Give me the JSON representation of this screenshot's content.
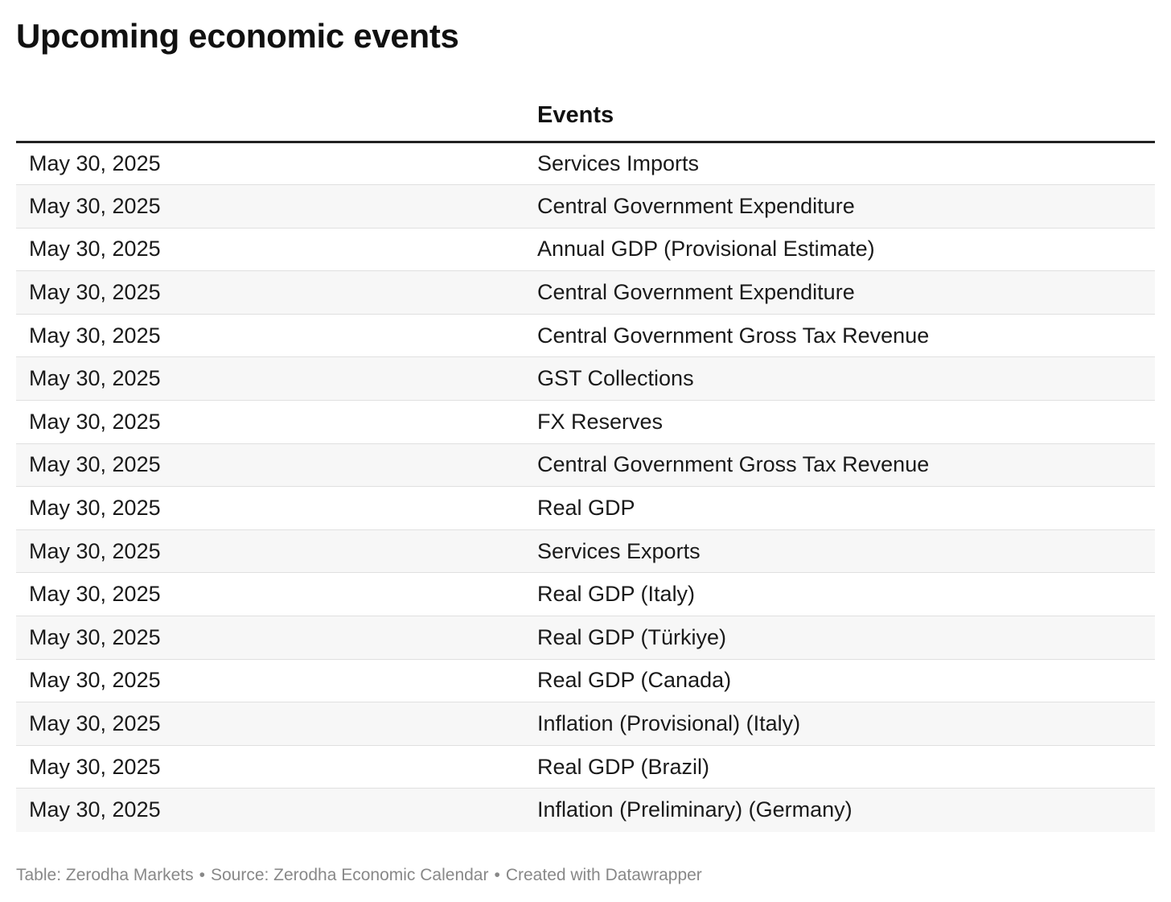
{
  "title": "Upcoming economic events",
  "table": {
    "columns": [
      "",
      "Events"
    ],
    "rows": [
      {
        "date": "May 30, 2025",
        "event": "Services Imports"
      },
      {
        "date": "May 30, 2025",
        "event": "Central Government Expenditure"
      },
      {
        "date": "May 30, 2025",
        "event": "Annual GDP (Provisional Estimate)"
      },
      {
        "date": "May 30, 2025",
        "event": "Central Government Expenditure"
      },
      {
        "date": "May 30, 2025",
        "event": "Central Government Gross Tax Revenue"
      },
      {
        "date": "May 30, 2025",
        "event": "GST Collections"
      },
      {
        "date": "May 30, 2025",
        "event": "FX Reserves"
      },
      {
        "date": "May 30, 2025",
        "event": "Central Government Gross Tax Revenue"
      },
      {
        "date": "May 30, 2025",
        "event": "Real GDP"
      },
      {
        "date": "May 30, 2025",
        "event": "Services Exports"
      },
      {
        "date": "May 30, 2025",
        "event": "Real GDP (Italy)"
      },
      {
        "date": "May 30, 2025",
        "event": "Real GDP (Türkiye)"
      },
      {
        "date": "May 30, 2025",
        "event": "Real GDP (Canada)"
      },
      {
        "date": "May 30, 2025",
        "event": "Inflation (Provisional) (Italy)"
      },
      {
        "date": "May 30, 2025",
        "event": "Real GDP (Brazil)"
      },
      {
        "date": "May 30, 2025",
        "event": "Inflation (Preliminary) (Germany)"
      }
    ]
  },
  "footer": {
    "table_credit": "Table: Zerodha Markets",
    "source": "Source: Zerodha Economic Calendar",
    "created_with": "Created with Datawrapper",
    "separator": "•"
  }
}
